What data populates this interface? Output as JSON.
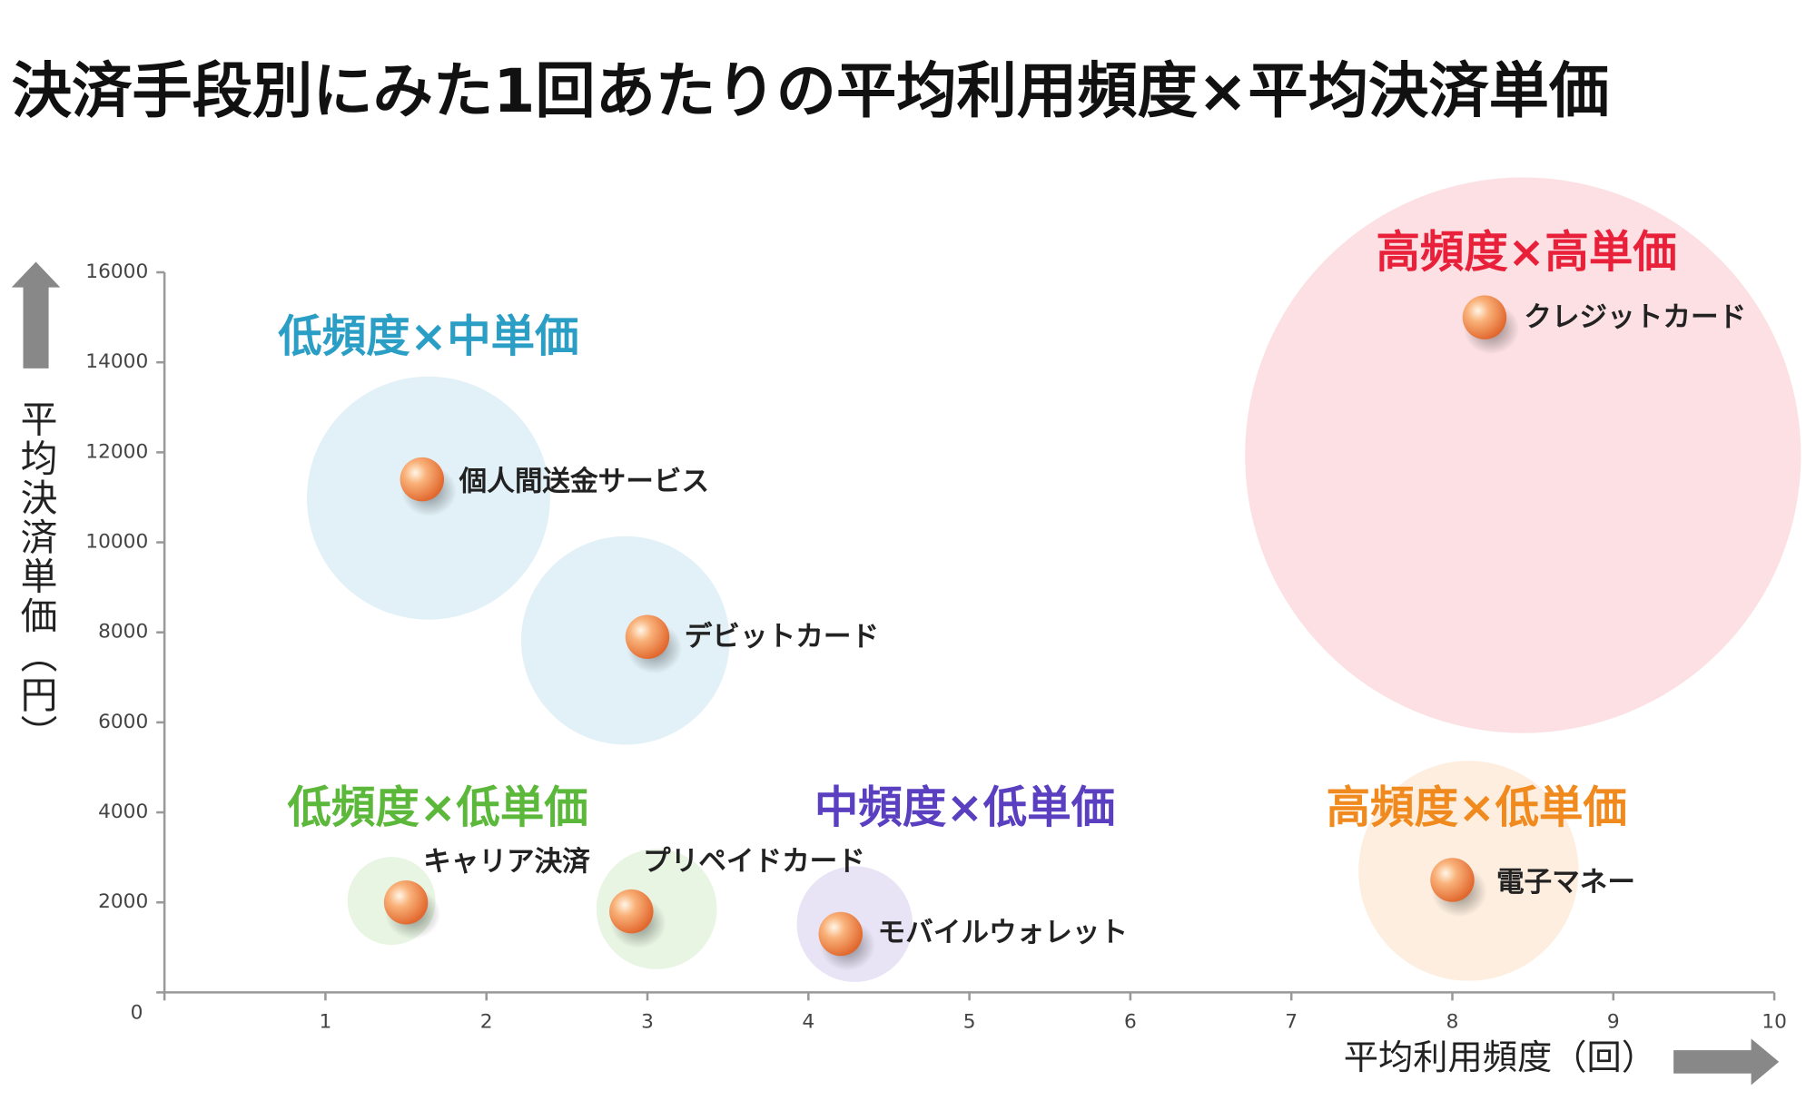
{
  "chart_data": {
    "type": "scatter",
    "title": "決済手段別にみた1回あたりの平均利用頻度×平均決済単価",
    "x_label": "平均利用頻度（回）",
    "y_label": "平均決済単価（円）",
    "xlim": [
      0,
      10
    ],
    "xticks": [
      0,
      1,
      2,
      3,
      4,
      5,
      6,
      7,
      8,
      9,
      10
    ],
    "ylim": [
      0,
      16000
    ],
    "yticks": [
      0,
      2000,
      4000,
      6000,
      8000,
      10000,
      12000,
      14000,
      16000
    ],
    "series": [
      {
        "name": "低頻度×中単価",
        "color": "#2a9ec4",
        "labels": [
          "個人間送金サービス",
          "デビットカード"
        ],
        "x": [
          1.6,
          3.0
        ],
        "y": [
          11400,
          7900
        ]
      },
      {
        "name": "高頻度×高単価",
        "color": "#e8203a",
        "labels": [
          "クレジットカード"
        ],
        "x": [
          8.2
        ],
        "y": [
          15000
        ]
      },
      {
        "name": "低頻度×低単価",
        "color": "#5cb83a",
        "labels": [
          "キャリア決済",
          "プリペイドカード"
        ],
        "x": [
          1.5,
          2.9
        ],
        "y": [
          2000,
          1800
        ]
      },
      {
        "name": "中頻度×低単価",
        "color": "#5a3fc0",
        "labels": [
          "モバイルウォレット"
        ],
        "x": [
          4.2
        ],
        "y": [
          1300
        ]
      },
      {
        "name": "高頻度×低単価",
        "color": "#f08a1e",
        "labels": [
          "電子マネー"
        ],
        "x": [
          8.0
        ],
        "y": [
          2500
        ]
      }
    ]
  }
}
